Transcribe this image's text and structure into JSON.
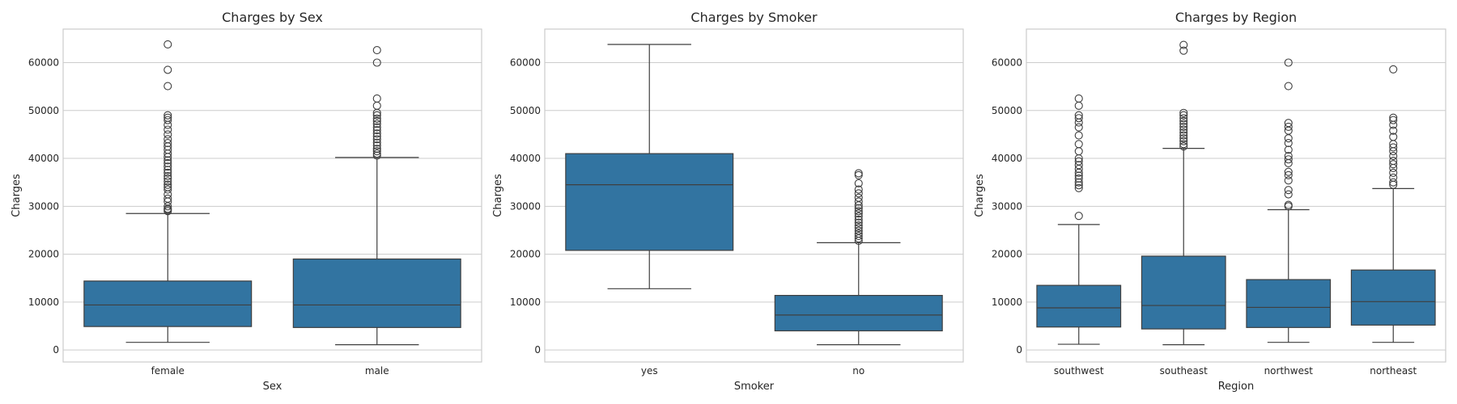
{
  "chart_data": [
    {
      "type": "box",
      "title": "Charges by Sex",
      "xlabel": "Sex",
      "ylabel": "Charges",
      "ylim": [
        -2500,
        67000
      ],
      "yticks": [
        0,
        10000,
        20000,
        30000,
        40000,
        50000,
        60000
      ],
      "grid": true,
      "categories": [
        "female",
        "male"
      ],
      "boxes": [
        {
          "whisker_low": 1600,
          "q1": 4900,
          "median": 9400,
          "q3": 14400,
          "whisker_high": 28500,
          "fliers": [
            29000,
            29300,
            29500,
            30000,
            31000,
            31600,
            32500,
            33500,
            34000,
            34500,
            35200,
            35800,
            36300,
            37000,
            37600,
            38300,
            39000,
            39600,
            40300,
            41000,
            41800,
            42500,
            43200,
            44000,
            45000,
            46000,
            47000,
            48000,
            48500,
            49000,
            55100,
            58500,
            63800
          ]
        },
        {
          "whisker_low": 1100,
          "q1": 4700,
          "median": 9400,
          "q3": 19000,
          "whisker_high": 40200,
          "fliers": [
            40600,
            41000,
            41500,
            42000,
            42700,
            43300,
            44000,
            44600,
            45200,
            45900,
            46500,
            47200,
            47800,
            48300,
            49000,
            49500,
            51000,
            52500,
            60000,
            62600
          ]
        }
      ]
    },
    {
      "type": "box",
      "title": "Charges by Smoker",
      "xlabel": "Smoker",
      "ylabel": "Charges",
      "ylim": [
        -2500,
        67000
      ],
      "yticks": [
        0,
        10000,
        20000,
        30000,
        40000,
        50000,
        60000
      ],
      "grid": true,
      "categories": [
        "yes",
        "no"
      ],
      "boxes": [
        {
          "whisker_low": 12800,
          "q1": 20800,
          "median": 34500,
          "q3": 41000,
          "whisker_high": 63800,
          "fliers": []
        },
        {
          "whisker_low": 1100,
          "q1": 4000,
          "median": 7300,
          "q3": 11400,
          "whisker_high": 22400,
          "fliers": [
            22800,
            23300,
            23800,
            24300,
            24900,
            25500,
            26000,
            26600,
            27200,
            27900,
            28500,
            29000,
            29600,
            30200,
            31000,
            31800,
            32700,
            33500,
            34800,
            36500,
            36900
          ]
        }
      ]
    },
    {
      "type": "box",
      "title": "Charges by Region",
      "xlabel": "Region",
      "ylabel": "Charges",
      "ylim": [
        -2500,
        67000
      ],
      "yticks": [
        0,
        10000,
        20000,
        30000,
        40000,
        50000,
        60000
      ],
      "grid": true,
      "categories": [
        "southwest",
        "southeast",
        "northwest",
        "northeast"
      ],
      "boxes": [
        {
          "whisker_low": 1200,
          "q1": 4800,
          "median": 8800,
          "q3": 13500,
          "whisker_high": 26200,
          "fliers": [
            28000,
            33800,
            34400,
            35000,
            35800,
            36400,
            37000,
            37800,
            38600,
            39400,
            40000,
            41500,
            43000,
            44800,
            46500,
            47500,
            48400,
            49000,
            51000,
            52500
          ]
        },
        {
          "whisker_low": 1100,
          "q1": 4400,
          "median": 9300,
          "q3": 19600,
          "whisker_high": 42100,
          "fliers": [
            42500,
            43000,
            43600,
            44200,
            44800,
            45400,
            46000,
            46600,
            47200,
            47800,
            48400,
            49000,
            49500,
            62500,
            63700
          ]
        },
        {
          "whisker_low": 1600,
          "q1": 4700,
          "median": 8900,
          "q3": 14700,
          "whisker_high": 29300,
          "fliers": [
            30000,
            30300,
            32500,
            33400,
            35400,
            36500,
            37200,
            39000,
            39800,
            40500,
            41800,
            43200,
            44200,
            45800,
            46600,
            47400,
            55100,
            60000
          ]
        },
        {
          "whisker_low": 1600,
          "q1": 5200,
          "median": 10100,
          "q3": 16700,
          "whisker_high": 33700,
          "fliers": [
            34500,
            35000,
            36000,
            37000,
            38000,
            38800,
            39500,
            40500,
            41500,
            42300,
            43000,
            44500,
            45800,
            47000,
            48000,
            48500,
            58600
          ]
        }
      ]
    }
  ]
}
